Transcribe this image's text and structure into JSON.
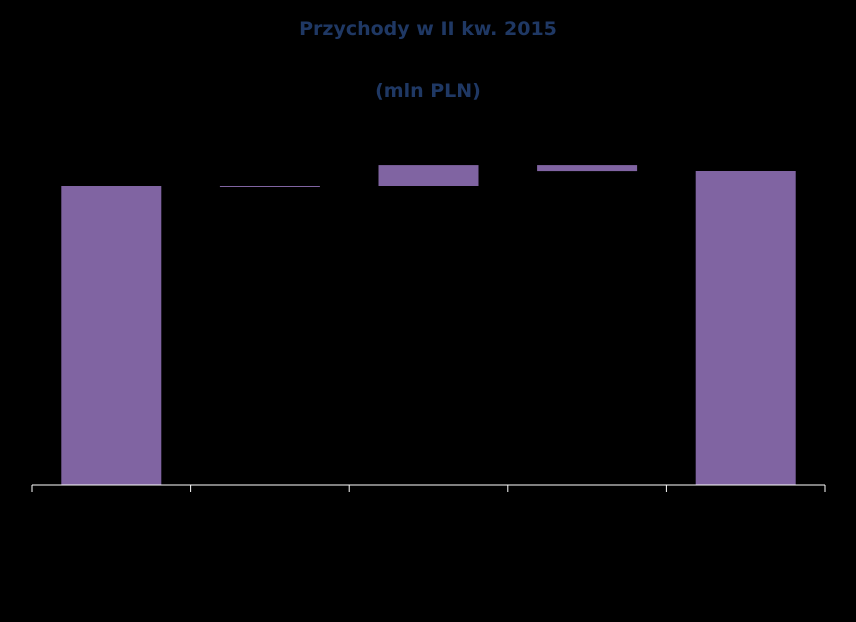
{
  "chart_data": {
    "type": "bar",
    "subtype": "waterfall",
    "title": "Przychody w II kw. 2015",
    "subtitle": "(mln PLN)",
    "categories": [
      "",
      "",
      "",
      "",
      ""
    ],
    "series": [
      {
        "values": [
          {
            "kind": "total",
            "start": 0,
            "end": 100
          },
          {
            "kind": "delta",
            "start": 100,
            "end": 99.7
          },
          {
            "kind": "delta",
            "start": 100,
            "end": 107
          },
          {
            "kind": "delta",
            "start": 107,
            "end": 105
          },
          {
            "kind": "total",
            "start": 0,
            "end": 105
          }
        ]
      }
    ],
    "ylim": [
      0,
      100
    ],
    "grid": false,
    "legend": "none"
  },
  "colors": {
    "background": "#000000",
    "bar": "#8064a2",
    "title": "#1f3864",
    "axis": "#ffffff"
  }
}
